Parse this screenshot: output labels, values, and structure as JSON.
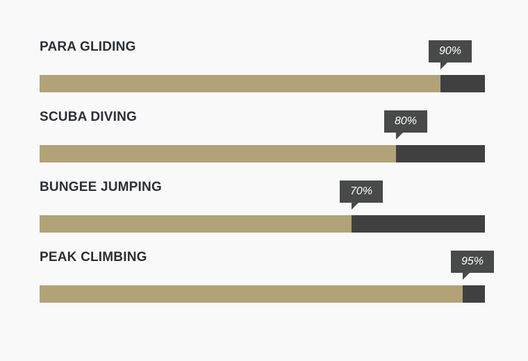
{
  "skills": [
    {
      "label": "PARA GLIDING",
      "percent": 90,
      "percent_label": "90%"
    },
    {
      "label": "SCUBA DIVING",
      "percent": 80,
      "percent_label": "80%"
    },
    {
      "label": "BUNGEE JUMPING",
      "percent": 70,
      "percent_label": "70%"
    },
    {
      "label": "PEAK CLIMBING",
      "percent": 95,
      "percent_label": "95%"
    }
  ],
  "colors": {
    "fill": "#b1a277",
    "track": "#404040",
    "tooltip": "#474a48",
    "label": "#2b2f36",
    "background": "#f9f9f9"
  }
}
